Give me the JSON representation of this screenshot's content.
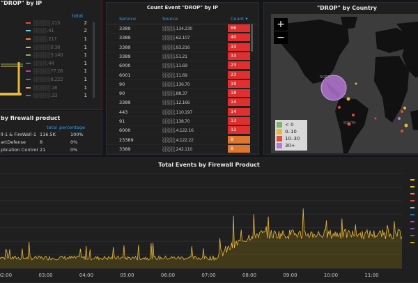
{
  "ip_panel": {
    "title": "\"DROP\" by IP",
    "total_header": "total",
    "rows": [
      {
        "ip": "░░░░░.213",
        "total": "2",
        "color": "#e24d42"
      },
      {
        "ip": "░░░░.41",
        "total": "2",
        "color": "#6ed0e0"
      },
      {
        "ip": "░░░░.217",
        "total": "1",
        "color": "#ef843c"
      },
      {
        "ip": "░░░░░0.38",
        "total": "1",
        "color": "#eab839"
      },
      {
        "ip": "░░░░░3.140",
        "total": "1",
        "color": "#7eb26d"
      },
      {
        "ip": "░░░░.44",
        "total": "1",
        "color": "#1f78c1"
      },
      {
        "ip": "░░░░░77.26",
        "total": "1",
        "color": "#ba43a9"
      },
      {
        "ip": "░░░░░8.222",
        "total": "1",
        "color": "#705da0"
      },
      {
        "ip": "░░░░░.16",
        "total": "1",
        "color": "#f9934e"
      },
      {
        "ip": "░░░░░.33",
        "total": "1",
        "color": "#508642"
      }
    ]
  },
  "fw_panel": {
    "title": "by firewall product",
    "headers": {
      "total": "total",
      "percentage": "percentage"
    },
    "rows": [
      {
        "product": "ll-1 & FireWall-1",
        "total": "116.5K",
        "percentage": "100%"
      },
      {
        "product": "artDefense",
        "total": "8",
        "percentage": "0%"
      },
      {
        "product": "plication Control",
        "total": "21",
        "percentage": "0%"
      }
    ]
  },
  "count_panel": {
    "title": "Count Event \"DROP\" by IP",
    "headers": {
      "service": "Service",
      "source": "Source",
      "count": "Count ▾"
    },
    "rows": [
      {
        "service": "3389",
        "source": "░░░░.134.230",
        "count": "66",
        "color": "#e02f2f"
      },
      {
        "service": "3389",
        "source": "░░░░.62.107",
        "count": "40",
        "color": "#e02f2f"
      },
      {
        "service": "3389",
        "source": "░░░░.93.216",
        "count": "33",
        "color": "#e02f2f"
      },
      {
        "service": "3389",
        "source": "░░░░.51.21",
        "count": "33",
        "color": "#e02f2f"
      },
      {
        "service": "6000",
        "source": "░░░░.11.69",
        "count": "23",
        "color": "#e02f2f"
      },
      {
        "service": "6001",
        "source": "░░░░.11.69",
        "count": "23",
        "color": "#e02f2f"
      },
      {
        "service": "90",
        "source": "░░░░.136.70",
        "count": "19",
        "color": "#e02f2f"
      },
      {
        "service": "90",
        "source": "░░░░.88.37",
        "count": "18",
        "color": "#e02f2f"
      },
      {
        "service": "3389",
        "source": "░░░░.12.166",
        "count": "14",
        "color": "#e02f2f"
      },
      {
        "service": "443",
        "source": "░░░░.110.197",
        "count": "14",
        "color": "#e02f2f"
      },
      {
        "service": "91",
        "source": "░░░░.138.70",
        "count": "13",
        "color": "#e02f2f"
      },
      {
        "service": "6000",
        "source": "░░░░.4.122.16",
        "count": "12",
        "color": "#e02f2f"
      },
      {
        "service": "23389",
        "source": "░░░░.4.122.22",
        "count": "8",
        "color": "#e0752d"
      },
      {
        "service": "3389",
        "source": "░░░░.242.110",
        "count": "8",
        "color": "#e0752d"
      }
    ]
  },
  "map_panel": {
    "title": "\"DROP\" by Country",
    "zoom_in": "+",
    "zoom_out": "−",
    "region_labels": {
      "north": "NORTH",
      "south": "SOUTH\nAMERICA"
    },
    "legend": [
      {
        "label": "< 0",
        "color": "#7eb26d"
      },
      {
        "label": "0–10",
        "color": "#eab839"
      },
      {
        "label": "10–30",
        "color": "#e24d42"
      },
      {
        "label": "30+",
        "color": "#b877d9"
      }
    ]
  },
  "events_panel": {
    "title": "Total Events by Firewall Product",
    "series_colors": [
      "#eab839",
      "#eab839",
      "#ef843c",
      "#e24d42",
      "#6ed0e0",
      "#1f78c1",
      "#ba43a9",
      "#705da0",
      "#508642",
      "#cca300"
    ],
    "chart_data": {
      "type": "line",
      "x_ticks": [
        "02:00",
        "03:00",
        "04:00",
        "05:00",
        "06:00",
        "07:00",
        "08:00",
        "09:00",
        "10:00",
        "11:00"
      ]
    }
  }
}
